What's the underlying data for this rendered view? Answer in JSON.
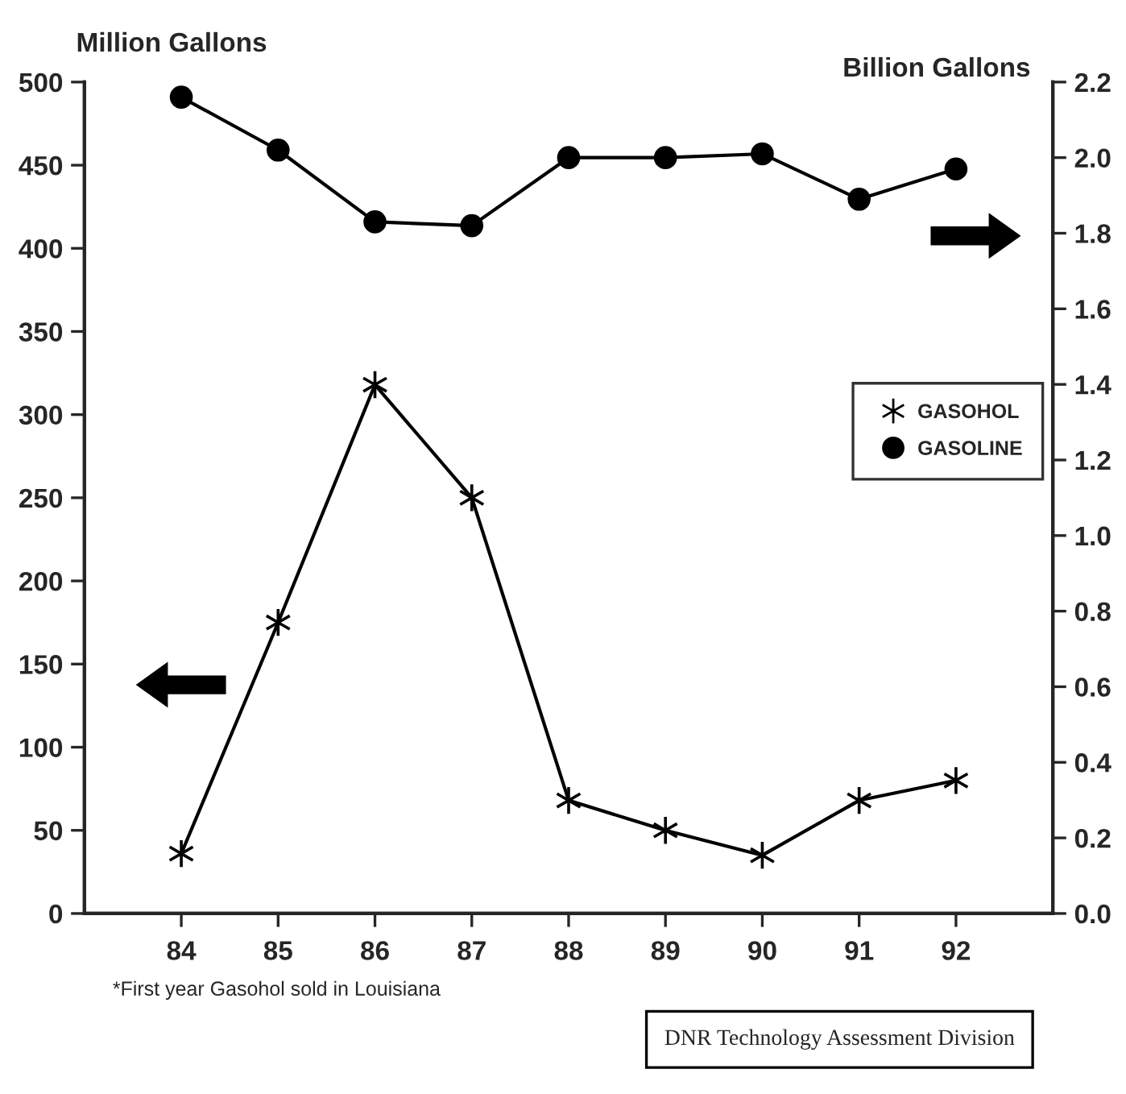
{
  "chart_data": {
    "type": "line",
    "ylabel": "Million Gallons",
    "y2label": "Billion Gallons",
    "categories": [
      "84",
      "85",
      "86",
      "87",
      "88",
      "89",
      "90",
      "91",
      "92"
    ],
    "series": [
      {
        "name": "GASOHOL",
        "color": "#000000",
        "marker": "cross",
        "values": [
          36,
          175,
          318,
          250,
          68,
          50,
          35,
          68,
          80
        ]
      },
      {
        "name": "GASOLINE",
        "color": "#000000",
        "marker": "circle",
        "axis": "y2",
        "values": [
          2.16,
          2.02,
          1.83,
          1.82,
          2.0,
          2.0,
          2.01,
          1.89,
          1.97
        ]
      }
    ],
    "ylim": [
      0,
      500
    ],
    "yticks": [
      0,
      50,
      100,
      150,
      200,
      250,
      300,
      350,
      400,
      450,
      500
    ],
    "y2lim": [
      0,
      2.2
    ],
    "y2ticks": [
      {
        "value": 0,
        "label": "0.0"
      },
      {
        "value": 0.2,
        "label": "0.2"
      },
      {
        "value": 0.4,
        "label": "0.4"
      },
      {
        "value": 0.6,
        "label": "0.6"
      },
      {
        "value": 0.8,
        "label": "0.8"
      },
      {
        "value": 1.0,
        "label": "1.0"
      },
      {
        "value": 1.2,
        "label": "1.2"
      },
      {
        "value": 1.4,
        "label": "1.4"
      },
      {
        "value": 1.6,
        "label": "1.6"
      },
      {
        "value": 1.8,
        "label": "1.8"
      },
      {
        "value": 2.0,
        "label": "2.0"
      },
      {
        "value": 2.2,
        "label": "2.2"
      }
    ],
    "legend": "right",
    "grid": false,
    "line_style": "solid",
    "annotations": [
      "*First year Gasohol sold in Louisiana",
      "DNR Technology Assessment Division"
    ]
  }
}
